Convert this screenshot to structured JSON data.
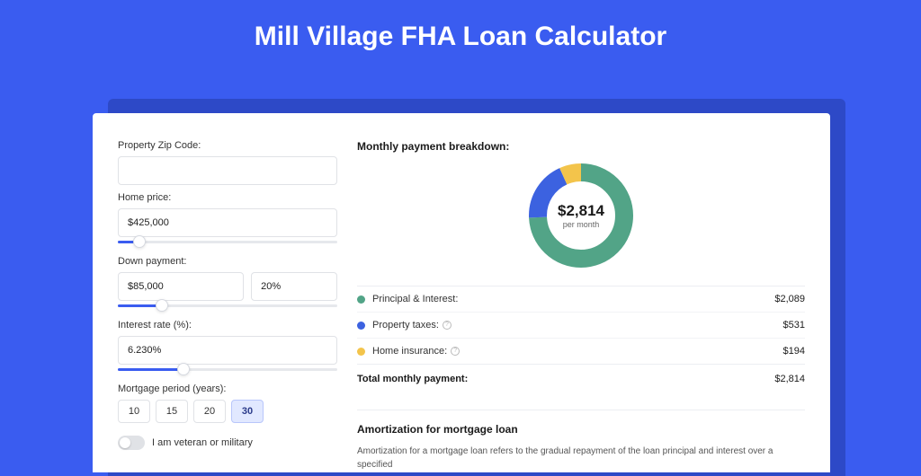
{
  "page": {
    "title": "Mill Village FHA Loan Calculator",
    "bg_color": "#3a5cf0",
    "shadow_color": "#2d49c7",
    "card_bg": "#ffffff"
  },
  "form": {
    "zip": {
      "label": "Property Zip Code:",
      "value": ""
    },
    "home_price": {
      "label": "Home price:",
      "value": "$425,000",
      "slider_pct": 10
    },
    "down_payment": {
      "label": "Down payment:",
      "amount": "$85,000",
      "percent": "20%",
      "slider_pct": 20
    },
    "interest_rate": {
      "label": "Interest rate (%):",
      "value": "6.230%",
      "slider_pct": 30
    },
    "mortgage_period": {
      "label": "Mortgage period (years):",
      "options": [
        "10",
        "15",
        "20",
        "30"
      ],
      "selected": "30"
    },
    "veteran": {
      "label": "I am veteran or military",
      "on": false
    }
  },
  "breakdown": {
    "title": "Monthly payment breakdown:",
    "donut": {
      "amount": "$2,814",
      "sub": "per month",
      "segments": [
        {
          "name": "principal_interest",
          "color": "#52a487",
          "pct": 74.2
        },
        {
          "name": "property_taxes",
          "color": "#3c62e0",
          "pct": 18.9
        },
        {
          "name": "home_insurance",
          "color": "#f3c44b",
          "pct": 6.9
        }
      ],
      "stroke_width": 20
    },
    "rows": [
      {
        "color": "#52a487",
        "label": "Principal & Interest:",
        "value": "$2,089",
        "info": false
      },
      {
        "color": "#3c62e0",
        "label": "Property taxes:",
        "value": "$531",
        "info": true
      },
      {
        "color": "#f3c44b",
        "label": "Home insurance:",
        "value": "$194",
        "info": true
      }
    ],
    "total": {
      "label": "Total monthly payment:",
      "value": "$2,814"
    }
  },
  "amortization": {
    "title": "Amortization for mortgage loan",
    "body": "Amortization for a mortgage loan refers to the gradual repayment of the loan principal and interest over a specified"
  }
}
